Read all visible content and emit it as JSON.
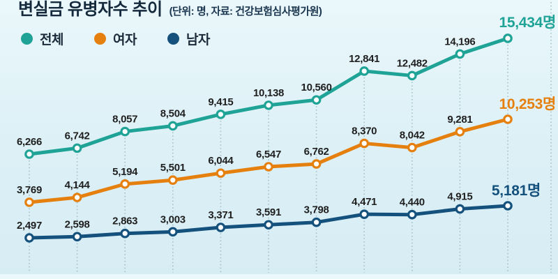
{
  "header": {
    "title": "변실금 유병자수 추이",
    "subtitle": "(단위: 명, 자료: 건강보험심사평가원)"
  },
  "chart_data": {
    "type": "line",
    "title": "변실금 유병자수 추이",
    "subtitle": "(단위: 명, 자료: 건강보험심사평가원)",
    "unit": "명",
    "source": "건강보험심사평가원",
    "categories": null,
    "grid": "vertical-dotted",
    "legend_position": "top-left",
    "series": [
      {
        "key": "total",
        "name": "전체",
        "color": "#1fa396",
        "values": [
          6266,
          6742,
          8057,
          8504,
          9415,
          10138,
          10560,
          12841,
          12482,
          14196,
          15434
        ],
        "point_labels": [
          "6,266",
          "6,742",
          "8,057",
          "8,504",
          "9,415",
          "10,138",
          "10,560",
          "12,841",
          "12,482",
          "14,196"
        ],
        "final_label": "15,434명"
      },
      {
        "key": "female",
        "name": "여자",
        "color": "#e5800f",
        "values": [
          3769,
          4144,
          5194,
          5501,
          6044,
          6547,
          6762,
          8370,
          8042,
          9281,
          10253
        ],
        "point_labels": [
          "3,769",
          "4,144",
          "5,194",
          "5,501",
          "6,044",
          "6,547",
          "6,762",
          "8,370",
          "8,042",
          "9,281"
        ],
        "final_label": "10,253명"
      },
      {
        "key": "male",
        "name": "남자",
        "color": "#15517d",
        "values": [
          2497,
          2598,
          2863,
          3003,
          3371,
          3591,
          3798,
          4471,
          4440,
          4915,
          5181
        ],
        "point_labels": [
          "2,497",
          "2,598",
          "2,863",
          "3,003",
          "3,371",
          "3,591",
          "3,798",
          "4,471",
          "4,440",
          "4,915"
        ],
        "final_label": "5,181명"
      }
    ]
  }
}
